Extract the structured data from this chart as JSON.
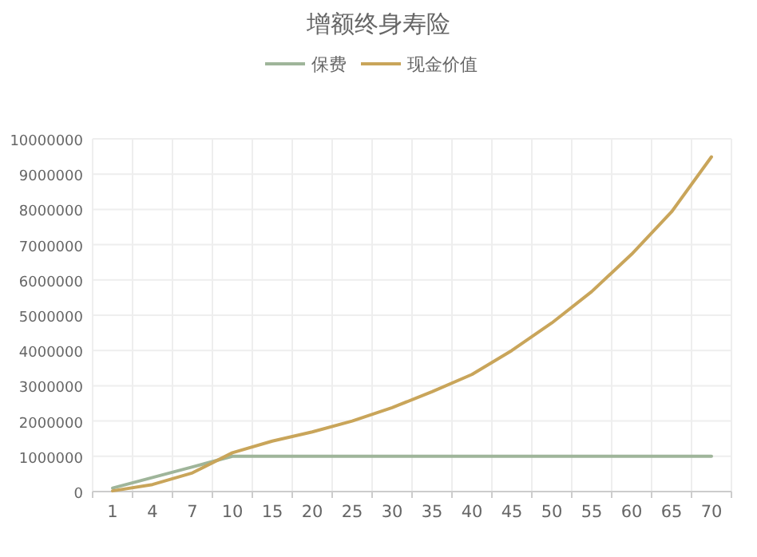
{
  "chart_data": {
    "type": "line",
    "title": "增额终身寿险",
    "categories": [
      "1",
      "4",
      "7",
      "10",
      "15",
      "20",
      "25",
      "30",
      "35",
      "40",
      "45",
      "50",
      "55",
      "60",
      "65",
      "70"
    ],
    "series": [
      {
        "name": "保费",
        "color": "#9fb59a",
        "values": [
          100000,
          400000,
          700000,
          1000000,
          1000000,
          1000000,
          1000000,
          1000000,
          1000000,
          1000000,
          1000000,
          1000000,
          1000000,
          1000000,
          1000000,
          1000000
        ]
      },
      {
        "name": "现金价值",
        "color": "#c9a55a",
        "values": [
          20000,
          200000,
          530000,
          1100000,
          1430000,
          1690000,
          2000000,
          2380000,
          2830000,
          3320000,
          4000000,
          4780000,
          5670000,
          6730000,
          7930000,
          9490000
        ]
      }
    ],
    "ylim": [
      0,
      10000000
    ],
    "yticks": [
      0,
      1000000,
      2000000,
      3000000,
      4000000,
      5000000,
      6000000,
      7000000,
      8000000,
      9000000,
      10000000
    ],
    "grid": true,
    "legend": "top",
    "marker": "none",
    "line_style": "solid"
  }
}
